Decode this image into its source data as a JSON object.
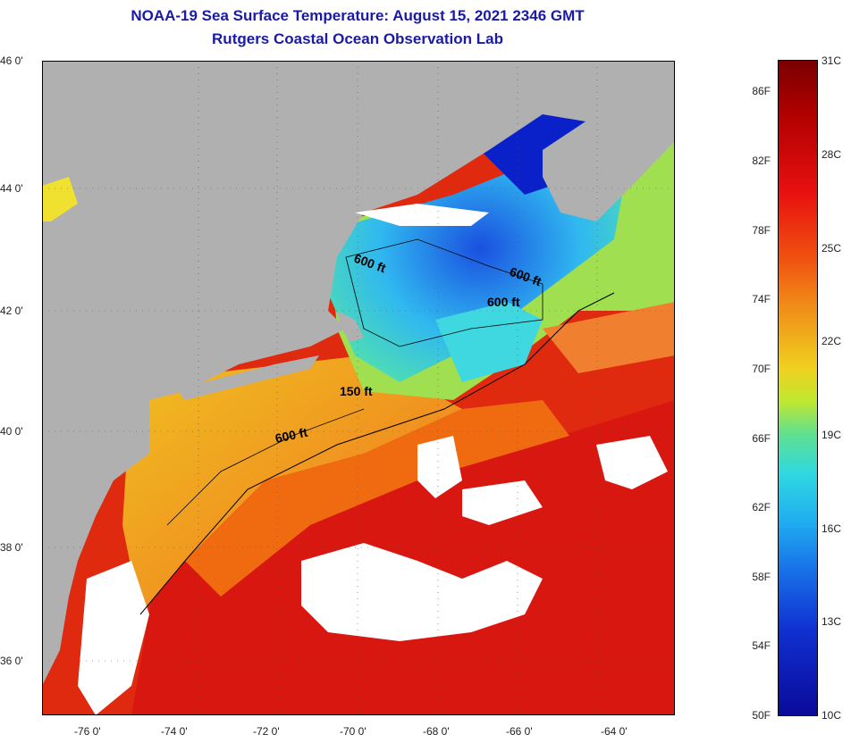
{
  "title": {
    "line1": "NOAA-19 Sea Surface Temperature:  August 15, 2021 2346 GMT",
    "line2": "Rutgers Coastal Ocean Observation Lab"
  },
  "map": {
    "lat_labels": [
      "46 0'",
      "44 0'",
      "42 0'",
      "40 0'",
      "38 0'",
      "36 0'"
    ],
    "lon_labels": [
      "-76 0'",
      "-74 0'",
      "-72 0'",
      "-70 0'",
      "-68 0'",
      "-66 0'",
      "-64 0'"
    ],
    "contour_labels": [
      "600 ft",
      "600 ft",
      "600 ft",
      "150 ft",
      "600 ft"
    ],
    "colors": {
      "land": "#b0b0b0",
      "cloud": "#ffffff",
      "warm": "#e02010",
      "hot": "#cc1010",
      "orange": "#f07a10",
      "yellow": "#f0d020",
      "green": "#60e080",
      "cyan": "#30c8f0",
      "blue": "#1a50e0",
      "deepblue": "#0a10b0"
    }
  },
  "colorbar": {
    "fahrenheit_labels": [
      "86F",
      "82F",
      "78F",
      "74F",
      "70F",
      "66F",
      "62F",
      "58F",
      "54F",
      "50F"
    ],
    "celsius_labels": [
      "31C",
      "28C",
      "25C",
      "22C",
      "19C",
      "16C",
      "13C",
      "10C"
    ]
  }
}
